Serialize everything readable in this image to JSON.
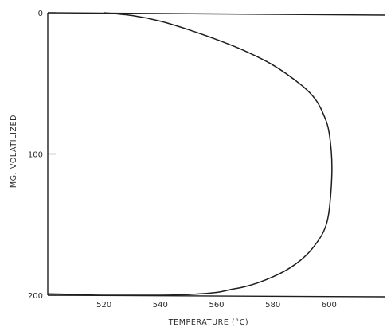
{
  "chart_data": {
    "type": "line",
    "title": "",
    "xlabel": "TEMPERATURE (°C)",
    "ylabel": "MG. VOLATILIZED",
    "xlim": [
      500,
      620
    ],
    "ylim": [
      0,
      200
    ],
    "y_inverted": true,
    "x_ticks": [
      520,
      540,
      560,
      580,
      600
    ],
    "x_tick_labels": [
      "520",
      "540",
      "560",
      "580",
      "600"
    ],
    "y_ticks": [
      0,
      100,
      200
    ],
    "y_tick_labels": [
      "0",
      "100",
      "200"
    ],
    "grid": false,
    "series": [
      {
        "x": [
          520,
          530,
          540,
          550,
          560,
          570,
          580,
          590,
          595,
          598,
          600,
          601,
          600,
          598,
          594,
          590,
          585,
          580,
          575,
          570,
          565,
          560,
          550,
          540,
          530,
          520,
          510,
          500
        ],
        "y": [
          0,
          2,
          6,
          12,
          19,
          27,
          37,
          51,
          61,
          72,
          85,
          110,
          140,
          155,
          167,
          175,
          182,
          187,
          191,
          194,
          196,
          198,
          199.5,
          200,
          200,
          200,
          199.5,
          199
        ]
      }
    ],
    "colors": {
      "line": "#1e1e1e",
      "axis": "#1e1e1e"
    }
  }
}
